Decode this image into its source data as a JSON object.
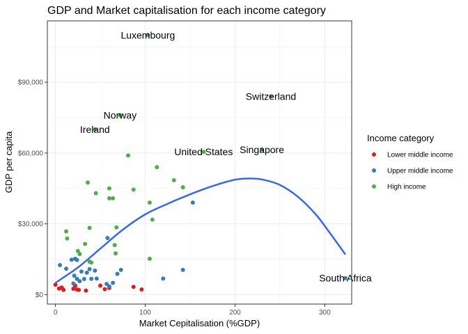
{
  "chart_data": {
    "type": "scatter",
    "title": "GDP and Market capitalisation for each income category",
    "xlabel": "Market Cepitalisation (%GDP)",
    "ylabel": "GDP per capita",
    "xlim": [
      -9,
      330
    ],
    "ylim": [
      -4000,
      116000
    ],
    "x_ticks": [
      0,
      100,
      200,
      300
    ],
    "x_tick_labels": [
      "0",
      "100",
      "200",
      "300"
    ],
    "y_ticks": [
      0,
      30000,
      60000,
      90000
    ],
    "y_tick_labels": [
      "$0",
      "$30,000",
      "$60,000",
      "$90,000"
    ],
    "grid": true,
    "legend": {
      "title": "Income category",
      "position": "right"
    },
    "series": [
      {
        "name": "Lower middle income",
        "color": "#E41A1C",
        "points": [
          [
            0,
            4200
          ],
          [
            4,
            2600
          ],
          [
            7,
            3000
          ],
          [
            9,
            2000
          ],
          [
            20,
            2500
          ],
          [
            22,
            3800
          ],
          [
            24,
            2200
          ],
          [
            26,
            2000
          ],
          [
            34,
            1700
          ],
          [
            50,
            3800
          ],
          [
            55,
            2300
          ],
          [
            60,
            2800
          ],
          [
            87,
            3300
          ],
          [
            96,
            2200
          ]
        ]
      },
      {
        "name": "Upper middle income",
        "color": "#377EB8",
        "points": [
          [
            5,
            12500
          ],
          [
            12,
            11000
          ],
          [
            18,
            14800
          ],
          [
            22,
            15200
          ],
          [
            24,
            14700
          ],
          [
            21,
            8000
          ],
          [
            24,
            6700
          ],
          [
            27,
            5700
          ],
          [
            29,
            9800
          ],
          [
            32,
            6600
          ],
          [
            35,
            9300
          ],
          [
            38,
            10800
          ],
          [
            40,
            6700
          ],
          [
            44,
            10200
          ],
          [
            46,
            6800
          ],
          [
            57,
            4500
          ],
          [
            60,
            3500
          ],
          [
            64,
            5000
          ],
          [
            69,
            8800
          ],
          [
            73,
            10500
          ],
          [
            120,
            6800
          ],
          [
            142,
            10500
          ],
          [
            20,
            4700
          ],
          [
            58,
            24000
          ],
          [
            153,
            39000
          ],
          [
            323,
            7000
          ]
        ]
      },
      {
        "name": "High income",
        "color": "#4DAF4A",
        "points": [
          [
            12,
            26800
          ],
          [
            13,
            23800
          ],
          [
            25,
            18500
          ],
          [
            27,
            17200
          ],
          [
            33,
            21500
          ],
          [
            36,
            47500
          ],
          [
            38,
            28300
          ],
          [
            38,
            14000
          ],
          [
            40,
            13600
          ],
          [
            44,
            70000
          ],
          [
            45,
            43000
          ],
          [
            60,
            40800
          ],
          [
            60,
            45000
          ],
          [
            64,
            40800
          ],
          [
            66,
            21000
          ],
          [
            67,
            17500
          ],
          [
            68,
            28500
          ],
          [
            72,
            76000
          ],
          [
            81,
            59000
          ],
          [
            87,
            44500
          ],
          [
            103,
            110000
          ],
          [
            105,
            15200
          ],
          [
            105,
            39000
          ],
          [
            108,
            31800
          ],
          [
            113,
            54000
          ],
          [
            132,
            48500
          ],
          [
            142,
            45500
          ],
          [
            165,
            60500
          ],
          [
            230,
            61500
          ],
          [
            240,
            84000
          ]
        ]
      }
    ],
    "smooth": {
      "color": "#3366FF",
      "points": [
        [
          0,
          5000
        ],
        [
          25,
          11500
        ],
        [
          50,
          19500
        ],
        [
          75,
          27500
        ],
        [
          100,
          34000
        ],
        [
          125,
          38500
        ],
        [
          150,
          42500
        ],
        [
          175,
          46000
        ],
        [
          200,
          48700
        ],
        [
          215,
          49200
        ],
        [
          230,
          48800
        ],
        [
          250,
          46500
        ],
        [
          270,
          41500
        ],
        [
          290,
          34000
        ],
        [
          305,
          26500
        ],
        [
          323,
          17000
        ]
      ]
    },
    "annotations": [
      {
        "text": "Luxembourg",
        "x": 103,
        "y": 110000
      },
      {
        "text": "Switzerland",
        "x": 240,
        "y": 84000
      },
      {
        "text": "Norway",
        "x": 72,
        "y": 76000
      },
      {
        "text": "Ireland",
        "x": 44,
        "y": 70000
      },
      {
        "text": "United States",
        "x": 165,
        "y": 60500
      },
      {
        "text": "Singapore",
        "x": 230,
        "y": 61500
      },
      {
        "text": "South Africa",
        "x": 323,
        "y": 7000
      }
    ]
  }
}
